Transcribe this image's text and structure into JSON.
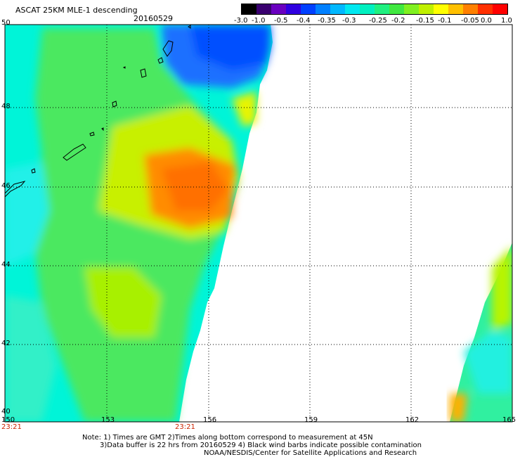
{
  "header": {
    "title": "ASCAT 25KM MLE-1 descending",
    "date": "20160529"
  },
  "colorbar": {
    "colors": [
      "#000000",
      "#3a0070",
      "#6a00c0",
      "#3000e0",
      "#0040ff",
      "#0080ff",
      "#00b8ff",
      "#00e8f0",
      "#00f0c0",
      "#20f080",
      "#40e840",
      "#80f020",
      "#c0f000",
      "#ffff00",
      "#ffc000",
      "#ff8000",
      "#ff3000",
      "#ff0000"
    ],
    "labels": [
      "-3.0",
      "-1.0",
      "-0.5",
      "-0.4",
      "-0.35",
      "-0.3",
      "-0.25",
      "-0.2",
      "-0.15",
      "-0.1",
      "-0.05",
      "0.0",
      "1.0"
    ]
  },
  "axes": {
    "lon_ticks": [
      "150",
      "153",
      "156",
      "159",
      "162",
      "165"
    ],
    "lat_ticks": [
      "50",
      "48",
      "46",
      "44",
      "42",
      "40"
    ],
    "time_labels": [
      "23:21",
      "23:21"
    ]
  },
  "notes": {
    "line1": "Note: 1) Times are GMT 2)Times along bottom correspond to measurement at 45N",
    "line2": "3)Data buffer is 22 hrs from 20160529 4) Black wind barbs indicate possible contamination",
    "line3": "NOAA/NESDIS/Center for Satellite Applications and Research"
  }
}
